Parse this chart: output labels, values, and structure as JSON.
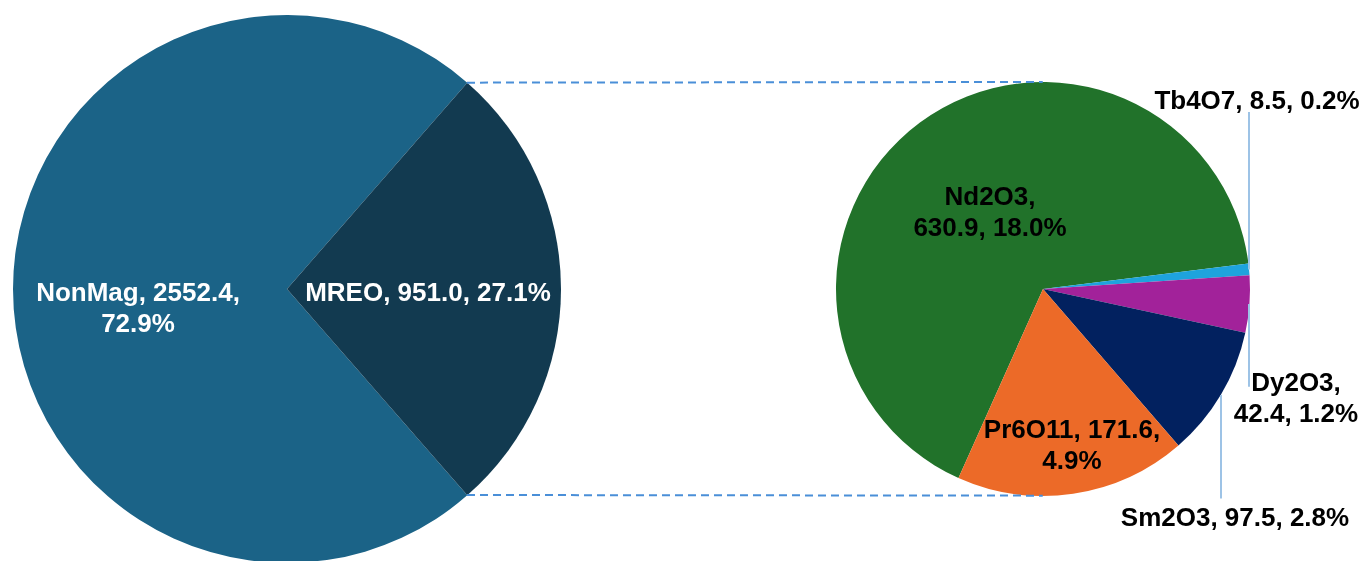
{
  "chart_data": [
    {
      "type": "pie",
      "categories": [
        "NonMag",
        "MREO"
      ],
      "values": [
        2552.4,
        951.0
      ],
      "colors": [
        "#1b6387",
        "#123a50"
      ],
      "value_labels": [
        ", 2552.4, 72.9%",
        ", 951.0, 27.1%"
      ]
    },
    {
      "type": "pie",
      "categories": [
        "Nd2O3",
        "Tb4O7",
        "Dy2O3",
        "Sm2O3",
        "Pr6O11"
      ],
      "values": [
        630.9,
        8.5,
        42.4,
        97.5,
        171.6
      ],
      "colors": [
        "#21722a",
        "#1ea3dd",
        "#a2229a",
        "#02215f",
        "#ec6a28"
      ],
      "value_labels": [
        ", 630.9, 18.0%",
        ", 8.5, 0.2%",
        ", 42.4, 1.2%",
        ", 97.5, 2.8%",
        ", 171.6, 4.9%"
      ]
    }
  ]
}
